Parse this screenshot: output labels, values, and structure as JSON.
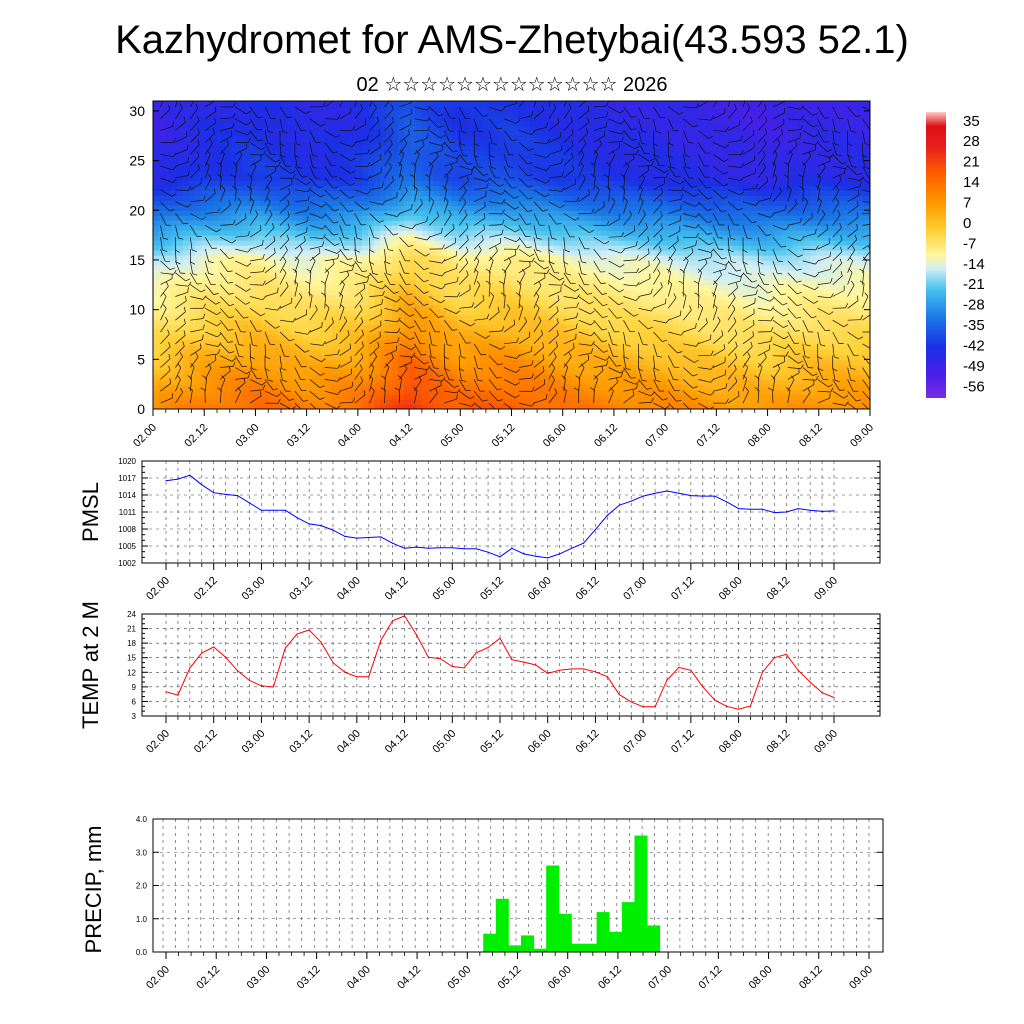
{
  "title": "Kazhydromet for AMS-Zhetybai(43.593 52.1)",
  "subtitle": "02 ☆☆☆☆☆☆☆☆☆☆☆☆☆ 2026",
  "time_labels": [
    "02.00",
    "02.12",
    "03.00",
    "03.12",
    "04.00",
    "04.12",
    "05.00",
    "05.12",
    "06.00",
    "06.12",
    "07.00",
    "07.12",
    "08.00",
    "08.12",
    "09.00"
  ],
  "chart_data": [
    {
      "type": "heatmap",
      "name": "cross-section",
      "ylim": [
        0,
        31
      ],
      "yticks": [
        0,
        5,
        10,
        15,
        20,
        25,
        30
      ],
      "colorbar": {
        "labels": [
          35,
          28,
          21,
          14,
          7,
          0,
          -7,
          -14,
          -21,
          -28,
          -35,
          -42,
          -49,
          -56
        ],
        "range": [
          -60,
          38
        ]
      },
      "surface_temp_by_time": [
        9,
        13,
        15,
        12,
        14,
        22,
        16,
        17,
        14,
        12,
        11,
        9,
        8,
        10,
        10
      ]
    },
    {
      "type": "line",
      "name": "PMSL",
      "ylabel": "PMSL",
      "ylim": [
        1002,
        1020
      ],
      "yticks": [
        1002,
        1005,
        1008,
        1011,
        1014,
        1017,
        1020
      ],
      "color": "#0000ff",
      "values": [
        1016.5,
        1016.8,
        1017.5,
        1015.8,
        1014.4,
        1014.1,
        1013.9,
        1012.6,
        1011.3,
        1011.3,
        1011.3,
        1010.0,
        1008.9,
        1008.6,
        1007.8,
        1006.7,
        1006.4,
        1006.5,
        1006.6,
        1005.5,
        1004.6,
        1004.8,
        1004.6,
        1004.7,
        1004.7,
        1004.5,
        1004.5,
        1003.9,
        1003.1,
        1004.6,
        1003.6,
        1003.2,
        1002.9,
        1003.6,
        1004.6,
        1005.5,
        1007.9,
        1010.4,
        1012.2,
        1012.9,
        1013.8,
        1014.3,
        1014.7,
        1014.3,
        1013.9,
        1013.8,
        1013.8,
        1012.8,
        1011.6,
        1011.5,
        1011.5,
        1010.9,
        1011.0,
        1011.6,
        1011.3,
        1011.1,
        1011.2
      ]
    },
    {
      "type": "line",
      "name": "TEMP at 2 M",
      "ylabel": "TEMP at 2 M",
      "ylim": [
        3,
        24
      ],
      "yticks": [
        3,
        6,
        9,
        12,
        15,
        18,
        21,
        24
      ],
      "color": "#ff0000",
      "values": [
        8.0,
        7.3,
        12.9,
        16.0,
        17.2,
        15.1,
        12.3,
        10.3,
        9.2,
        9.0,
        17.0,
        19.9,
        20.7,
        18.2,
        14.0,
        12.0,
        11.1,
        11.1,
        18.5,
        22.6,
        23.6,
        19.7,
        15.1,
        14.8,
        13.2,
        12.9,
        16.0,
        17.1,
        19.0,
        14.6,
        14.1,
        13.5,
        11.8,
        12.4,
        12.7,
        12.7,
        12.1,
        11.1,
        7.4,
        5.9,
        4.9,
        4.9,
        10.4,
        13.0,
        12.4,
        9.0,
        6.3,
        5.0,
        4.4,
        5.1,
        12.0,
        15.0,
        15.7,
        12.4,
        10.0,
        7.8,
        6.8
      ]
    },
    {
      "type": "bar",
      "name": "PRECIP, mm",
      "ylabel": "PRECIP, mm",
      "ylim": [
        0,
        4
      ],
      "yticks": [
        "0.0",
        "1.0",
        "2.0",
        "3.0",
        "4.0"
      ],
      "color": "#00ee00",
      "start_index": 25,
      "values": [
        0.55,
        1.6,
        0.2,
        0.5,
        0.1,
        2.6,
        1.15,
        0.25,
        0.25,
        1.2,
        0.6,
        1.5,
        3.5,
        0.8
      ]
    }
  ]
}
